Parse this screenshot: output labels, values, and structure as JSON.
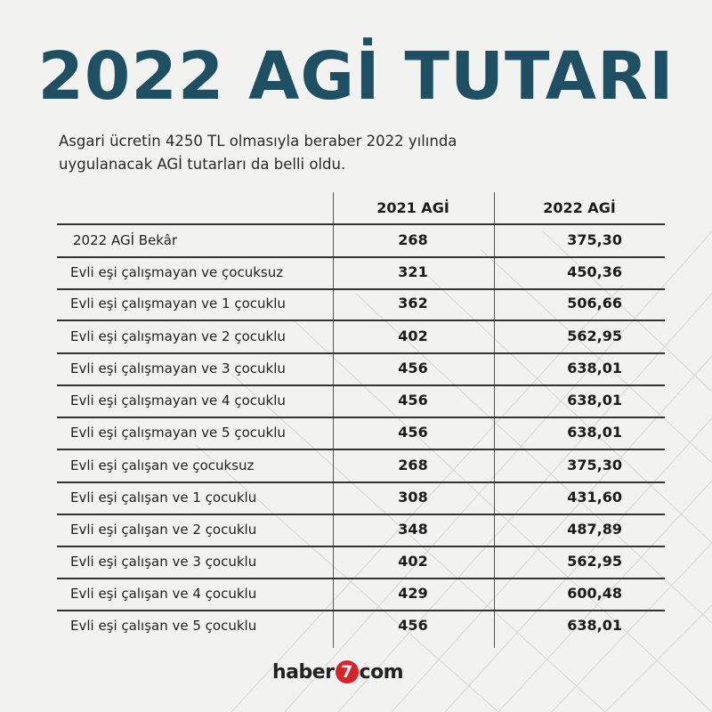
{
  "title": "2022 AGİ TUTARI",
  "subtitle_line1": "Asgari ücretin 4250 TL olmasıyla beraber 2022 yılında",
  "subtitle_line2": "uygulanacak AGİ tutarları da belli oldu.",
  "table": {
    "headers": [
      "",
      "2021 AGİ",
      "2022 AGİ"
    ],
    "rows": [
      {
        "label": "2022 AGİ Bekâr",
        "y2021": "268",
        "y2022": "375,30"
      },
      {
        "label": "Evli eşi çalışmayan ve çocuksuz",
        "y2021": "321",
        "y2022": "450,36"
      },
      {
        "label": "Evli eşi çalışmayan ve 1 çocuklu",
        "y2021": "362",
        "y2022": "506,66"
      },
      {
        "label": "Evli eşi çalışmayan ve 2 çocuklu",
        "y2021": "402",
        "y2022": "562,95"
      },
      {
        "label": "Evli eşi çalışmayan ve 3 çocuklu",
        "y2021": "456",
        "y2022": "638,01"
      },
      {
        "label": "Evli eşi çalışmayan ve 4 çocuklu",
        "y2021": "456",
        "y2022": "638,01"
      },
      {
        "label": "Evli eşi çalışmayan ve 5 çocuklu",
        "y2021": "456",
        "y2022": "638,01"
      },
      {
        "label": "Evli eşi çalışan ve çocuksuz",
        "y2021": "268",
        "y2022": "375,30"
      },
      {
        "label": "Evli eşi çalışan ve 1 çocuklu",
        "y2021": "308",
        "y2022": "431,60"
      },
      {
        "label": "Evli eşi çalışan ve 2 çocuklu",
        "y2021": "348",
        "y2022": "487,89"
      },
      {
        "label": "Evli eşi çalışan ve 3 çocuklu",
        "y2021": "402",
        "y2022": "562,95"
      },
      {
        "label": "Evli eşi çalışan ve 4 çocuklu",
        "y2021": "429",
        "y2022": "600,48"
      },
      {
        "label": "Evli eşi çalışan ve 5 çocuklu",
        "y2021": "456",
        "y2022": "638,01"
      }
    ]
  },
  "logo": {
    "prefix": "haber",
    "number": "7",
    "suffix": "com"
  },
  "colors": {
    "title": "#1e4f63",
    "logo_accent": "#d8232a",
    "background": "#f2f2f1"
  }
}
